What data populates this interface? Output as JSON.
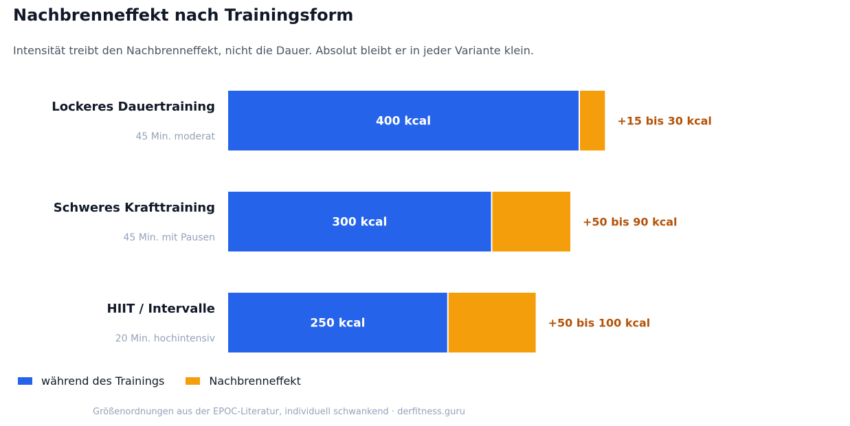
{
  "title": "Nachbrenneffekt nach Trainingsform",
  "subtitle": "Intensität treibt den Nachbrenneffekt, nicht die Dauer. Absolut bleibt er in jeder Variante klein.",
  "colors": {
    "training": "#2563eb",
    "afterburn": "#f59e0b",
    "afterburn_label": "#b45309",
    "category_label": "#111827",
    "category_sublabel": "#94a3b8"
  },
  "chart_data": {
    "type": "bar",
    "orientation": "horizontal",
    "stacked": true,
    "categories": [
      "Lockeres Dauertraining",
      "Schweres Krafttraining",
      "HIIT / Intervalle"
    ],
    "category_sublabels": [
      "45 Min. moderat",
      "45 Min. mit Pausen",
      "20 Min. hochintensiv"
    ],
    "series": [
      {
        "name": "während des Trainings",
        "values": [
          400,
          300,
          250
        ],
        "labels": [
          "400 kcal",
          "300 kcal",
          "250 kcal"
        ]
      },
      {
        "name": "Nachbrenneffekt",
        "values": [
          28.5,
          89,
          99.5
        ],
        "labels": [
          "+15 bis 30 kcal",
          "+50 bis 90 kcal",
          "+50 bis 100 kcal"
        ]
      }
    ],
    "xlim": [
      0,
      700
    ],
    "grid": false,
    "legend_position": "bottom-left"
  },
  "footnote": "Größenordnungen aus der EPOC-Literatur, individuell schwankend · derfitness.guru"
}
